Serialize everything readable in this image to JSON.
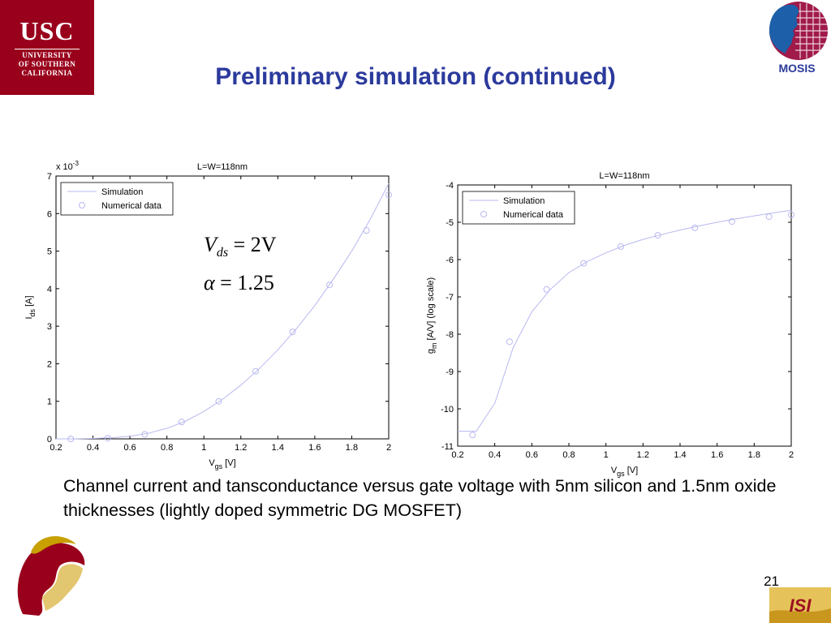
{
  "slide": {
    "title": "Preliminary simulation (continued)",
    "caption": "Channel current and tansconductance versus gate voltage with 5nm silicon and 1.5nm oxide thicknesses (lightly doped symmetric DG MOSFET)",
    "page_number": "21",
    "logo_left": {
      "line1": "USC",
      "line2": "UNIVERSITY",
      "line3": "OF SOUTHERN",
      "line4": "CALIFORNIA"
    },
    "logo_right": {
      "label": "MOSIS"
    },
    "logo_bottom_right": {
      "label": "ISI"
    },
    "colors": {
      "title": "#2b3a9c",
      "usc_red": "#99001b",
      "series": "#b8b8f0"
    }
  },
  "chart_data": [
    {
      "type": "line",
      "title": "L=W=118nm",
      "xlabel": "V",
      "xlabel_sub": "gs",
      "xlabel_unit": " [V]",
      "ylabel": "I",
      "ylabel_sub": "ds",
      "ylabel_unit": " [A]",
      "y_multiplier": "x 10",
      "y_multiplier_exp": "-3",
      "xlim": [
        0.2,
        2
      ],
      "ylim": [
        0,
        7
      ],
      "xticks": [
        "0.2",
        "0.4",
        "0.6",
        "0.8",
        "1",
        "1.2",
        "1.4",
        "1.6",
        "1.8",
        "2"
      ],
      "yticks": [
        "0",
        "1",
        "2",
        "3",
        "4",
        "5",
        "6",
        "7"
      ],
      "legend_position": "top-left",
      "annotation": {
        "line1_lhs": "V",
        "line1_sub": "ds",
        "line1_rhs": "= 2V",
        "line2_lhs": "α",
        "line2_rhs": "= 1.25"
      },
      "series": [
        {
          "name": "Simulation",
          "style": "line",
          "x": [
            0.2,
            0.3,
            0.4,
            0.5,
            0.6,
            0.7,
            0.8,
            0.9,
            1.0,
            1.1,
            1.2,
            1.3,
            1.4,
            1.5,
            1.6,
            1.7,
            1.8,
            1.9,
            2.0
          ],
          "y": [
            0.0,
            0.0,
            0.01,
            0.03,
            0.07,
            0.15,
            0.28,
            0.47,
            0.73,
            1.05,
            1.43,
            1.87,
            2.37,
            2.93,
            3.55,
            4.25,
            5.0,
            5.85,
            6.8
          ]
        },
        {
          "name": "Numerical data",
          "style": "markers",
          "x": [
            0.28,
            0.48,
            0.68,
            0.88,
            1.08,
            1.28,
            1.48,
            1.68,
            1.88,
            2.0
          ],
          "y": [
            0.0,
            0.02,
            0.12,
            0.45,
            1.0,
            1.8,
            2.85,
            4.1,
            5.55,
            6.5
          ]
        }
      ]
    },
    {
      "type": "line",
      "title": "L=W=118nm",
      "xlabel": "V",
      "xlabel_sub": "gs",
      "xlabel_unit": " [V]",
      "ylabel": "g",
      "ylabel_sub": "m",
      "ylabel_unit": " [A/V]",
      "ylabel_note": "(log scale)",
      "xlim": [
        0.2,
        2
      ],
      "ylim": [
        -11,
        -4
      ],
      "xticks": [
        "0.2",
        "0.4",
        "0.6",
        "0.8",
        "1",
        "1.2",
        "1.4",
        "1.6",
        "1.8",
        "2"
      ],
      "yticks": [
        "-11",
        "-10",
        "-9",
        "-8",
        "-7",
        "-6",
        "-5",
        "-4"
      ],
      "legend_position": "top-left",
      "series": [
        {
          "name": "Simulation",
          "style": "line",
          "x": [
            0.2,
            0.3,
            0.4,
            0.5,
            0.6,
            0.7,
            0.8,
            0.9,
            1.0,
            1.1,
            1.2,
            1.3,
            1.4,
            1.5,
            1.6,
            1.7,
            1.8,
            1.9,
            2.0
          ],
          "y": [
            -10.6,
            -10.6,
            -9.85,
            -8.35,
            -7.4,
            -6.8,
            -6.35,
            -6.05,
            -5.82,
            -5.62,
            -5.46,
            -5.33,
            -5.21,
            -5.1,
            -5.0,
            -4.91,
            -4.83,
            -4.75,
            -4.68
          ]
        },
        {
          "name": "Numerical data",
          "style": "markers",
          "x": [
            0.28,
            0.48,
            0.68,
            0.88,
            1.08,
            1.28,
            1.48,
            1.68,
            1.88,
            2.0
          ],
          "y": [
            -10.7,
            -8.2,
            -6.8,
            -6.1,
            -5.65,
            -5.35,
            -5.15,
            -4.98,
            -4.85,
            -4.8
          ]
        }
      ]
    }
  ]
}
